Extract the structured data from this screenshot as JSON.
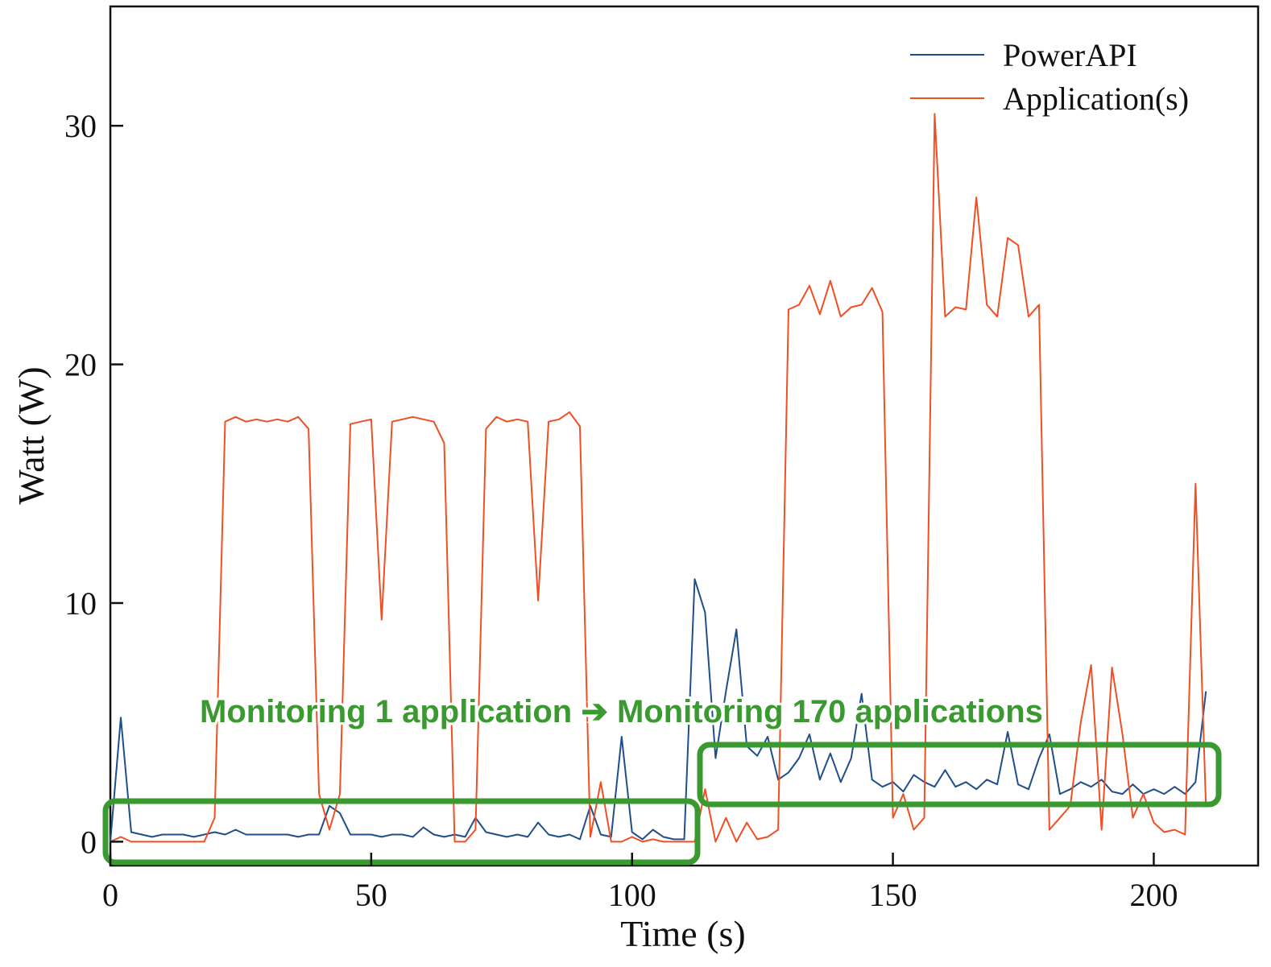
{
  "chart_data": {
    "type": "line",
    "x_label": "Time (s)",
    "y_label": "Watt (W)",
    "annotation": "Monitoring 1 application ➔ Monitoring 170 applications",
    "xlim": [
      0,
      220
    ],
    "xticks": [
      0,
      50,
      100,
      150,
      200
    ],
    "ylim": [
      -1,
      35
    ],
    "yticks": [
      0,
      10,
      20,
      30
    ],
    "legend": "upper right",
    "x": [
      0,
      2,
      4,
      6,
      8,
      10,
      12,
      14,
      16,
      18,
      20,
      22,
      24,
      26,
      28,
      30,
      32,
      34,
      36,
      38,
      40,
      42,
      44,
      46,
      48,
      50,
      52,
      54,
      56,
      58,
      60,
      62,
      64,
      66,
      68,
      70,
      72,
      74,
      76,
      78,
      80,
      82,
      84,
      86,
      88,
      90,
      92,
      94,
      96,
      98,
      100,
      102,
      104,
      106,
      108,
      110,
      112,
      114,
      116,
      118,
      120,
      122,
      124,
      126,
      128,
      130,
      132,
      134,
      136,
      138,
      140,
      142,
      144,
      146,
      148,
      150,
      152,
      154,
      156,
      158,
      160,
      162,
      164,
      166,
      168,
      170,
      172,
      174,
      176,
      178,
      180,
      182,
      184,
      186,
      188,
      190,
      192,
      194,
      196,
      198,
      200,
      202,
      204,
      206,
      208,
      210
    ],
    "series": [
      {
        "name": "PowerAPI",
        "color": "#1f4e8c",
        "values": [
          0,
          5.2,
          0.4,
          0.3,
          0.2,
          0.3,
          0.3,
          0.3,
          0.2,
          0.3,
          0.4,
          0.3,
          0.5,
          0.3,
          0.3,
          0.3,
          0.3,
          0.3,
          0.2,
          0.3,
          0.3,
          1.5,
          1.2,
          0.3,
          0.3,
          0.3,
          0.2,
          0.3,
          0.3,
          0.2,
          0.6,
          0.3,
          0.2,
          0.3,
          0.2,
          1,
          0.4,
          0.3,
          0.2,
          0.3,
          0.2,
          0.8,
          0.3,
          0.2,
          0.3,
          0.1,
          1.5,
          0.3,
          0.2,
          4.4,
          0.4,
          0.1,
          0.5,
          0.2,
          0.1,
          0.1,
          11,
          9.6,
          3.5,
          6.3,
          8.9,
          4,
          3.6,
          4.4,
          2.6,
          2.9,
          3.5,
          4.5,
          2.6,
          3.7,
          2.5,
          3.5,
          6.2,
          2.6,
          2.3,
          2.5,
          2.1,
          2.8,
          2.5,
          2.3,
          3,
          2.3,
          2.5,
          2.2,
          2.6,
          2.4,
          4.6,
          2.4,
          2.2,
          3.5,
          4.5,
          2,
          2.2,
          2.5,
          2.3,
          2.6,
          2.1,
          2,
          2.4,
          2,
          2.2,
          2,
          2.3,
          2,
          2.5,
          6.3
        ]
      },
      {
        "name": "Application(s)",
        "color": "#f04e23",
        "values": [
          0,
          0.2,
          0,
          0,
          0,
          0,
          0,
          0,
          0,
          0,
          1,
          17.6,
          17.8,
          17.6,
          17.7,
          17.6,
          17.7,
          17.6,
          17.8,
          17.3,
          2,
          0.5,
          2,
          17.5,
          17.6,
          17.7,
          9.3,
          17.6,
          17.7,
          17.8,
          17.7,
          17.6,
          16.7,
          0,
          0,
          0.5,
          17.3,
          17.8,
          17.6,
          17.7,
          17.6,
          10.1,
          17.6,
          17.7,
          18,
          17.4,
          0.2,
          2.5,
          0,
          0,
          0.2,
          0,
          0.1,
          0,
          0,
          0,
          0,
          2.2,
          0,
          1,
          0,
          0.8,
          0.1,
          0.2,
          0.5,
          22.3,
          22.5,
          23.3,
          22.1,
          23.5,
          22,
          22.4,
          22.5,
          23.2,
          22.2,
          1,
          2,
          0.5,
          1,
          30.5,
          22,
          22.4,
          22.3,
          27,
          22.5,
          22,
          25.3,
          25,
          22,
          22.5,
          0.5,
          1,
          1.5,
          5,
          7.4,
          0.5,
          7.3,
          4.5,
          1,
          2,
          0.8,
          0.4,
          0.5,
          0.3,
          15,
          1.5
        ]
      }
    ]
  }
}
